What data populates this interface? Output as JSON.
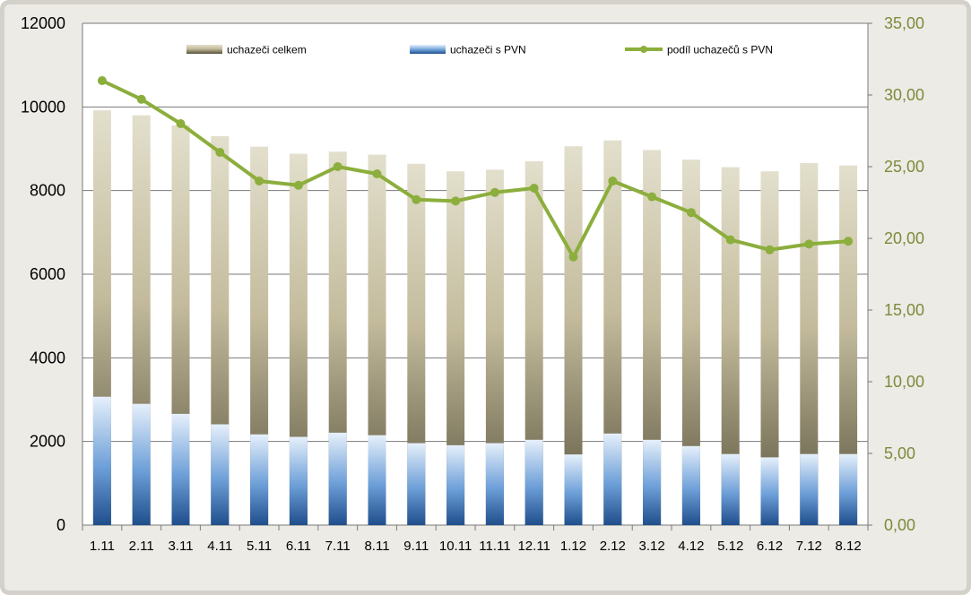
{
  "colors": {
    "total_bar_top": "#e2dfcc",
    "total_bar_bottom": "#55503a",
    "pvn_bar_top": "#e6f0fb",
    "pvn_bar_bottom": "#1f4e8c",
    "line": "#8cae3c",
    "right_axis_text": "#7f8a3a",
    "grid": "#7a7a7a"
  },
  "chart_data": {
    "type": "bar",
    "categories": [
      "1.11",
      "2.11",
      "3.11",
      "4.11",
      "5.11",
      "6.11",
      "7.11",
      "8.11",
      "9.11",
      "10.11",
      "11.11",
      "12.11",
      "1.12",
      "2.12",
      "3.12",
      "4.12",
      "5.12",
      "6.12",
      "7.12",
      "8.12"
    ],
    "series": [
      {
        "name": "uchazeči celkem",
        "type": "bar",
        "axis": "left",
        "values": [
          9920,
          9800,
          9560,
          9300,
          9050,
          8880,
          8930,
          8860,
          8640,
          8460,
          8500,
          8700,
          9060,
          9200,
          8970,
          8740,
          8560,
          8460,
          8660,
          8600
        ]
      },
      {
        "name": "uchazeči s PVN",
        "type": "bar",
        "axis": "left",
        "values": [
          3070,
          2900,
          2660,
          2410,
          2170,
          2110,
          2210,
          2150,
          1960,
          1910,
          1960,
          2040,
          1690,
          2190,
          2040,
          1890,
          1700,
          1620,
          1700,
          1700
        ]
      },
      {
        "name": "podíl uchazečů s PVN",
        "type": "line",
        "axis": "right",
        "values": [
          31.0,
          29.7,
          28.0,
          26.0,
          24.0,
          23.7,
          25.0,
          24.5,
          22.7,
          22.6,
          23.2,
          23.5,
          18.7,
          24.0,
          22.9,
          21.8,
          19.9,
          19.2,
          19.6,
          19.8
        ]
      }
    ],
    "ylim": [
      0,
      12000
    ],
    "yticks": [
      "0",
      "2000",
      "4000",
      "6000",
      "8000",
      "10000",
      "12000"
    ],
    "y2lim": [
      0,
      35
    ],
    "y2ticks": [
      "0,00",
      "5,00",
      "10,00",
      "15,00",
      "20,00",
      "25,00",
      "30,00",
      "35,00"
    ],
    "grid": true,
    "legend_position": "top"
  }
}
